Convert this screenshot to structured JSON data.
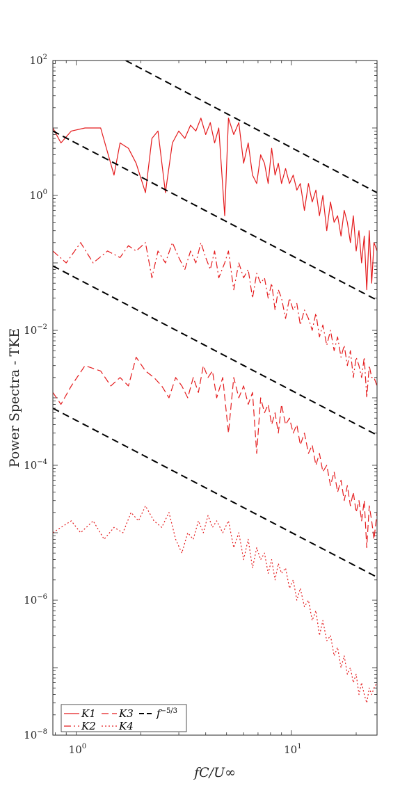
{
  "chart_data": {
    "type": "line",
    "x_scale": "log",
    "y_scale": "log",
    "xlim": [
      0.78,
      25
    ],
    "ylim": [
      1e-08,
      100
    ],
    "xlabel": "fC/U∞",
    "ylabel": "Power Spectra - TKE",
    "x_ticks": [
      {
        "base": "10",
        "exp": "0",
        "value": 1
      },
      {
        "base": "10",
        "exp": "1",
        "value": 10
      }
    ],
    "y_ticks": [
      {
        "base": "10",
        "exp": "2",
        "value": 100
      },
      {
        "base": "10",
        "exp": "0",
        "value": 1
      },
      {
        "base": "10",
        "exp": "-2",
        "value": 0.01
      },
      {
        "base": "10",
        "exp": "-4",
        "value": 0.0001
      },
      {
        "base": "10",
        "exp": "-6",
        "value": 1e-06
      },
      {
        "base": "10",
        "exp": "-8",
        "value": 1e-08
      }
    ],
    "legend_position": "bottom-left",
    "series": [
      {
        "name": "K1",
        "style": "solid",
        "color": "#e41a1c",
        "x": [
          0.78,
          0.85,
          0.95,
          1.1,
          1.3,
          1.5,
          1.6,
          1.75,
          1.9,
          2.1,
          2.25,
          2.4,
          2.6,
          2.8,
          3.0,
          3.2,
          3.4,
          3.6,
          3.8,
          4.0,
          4.2,
          4.4,
          4.6,
          4.9,
          5.1,
          5.4,
          5.7,
          6.0,
          6.3,
          6.6,
          6.9,
          7.2,
          7.5,
          7.8,
          8.1,
          8.4,
          8.7,
          9.0,
          9.4,
          9.8,
          10.2,
          10.6,
          11.0,
          11.5,
          12.0,
          12.5,
          13.0,
          13.5,
          14.0,
          14.6,
          15.2,
          15.8,
          16.4,
          17.0,
          17.6,
          18.2,
          18.8,
          19.4,
          20.0,
          20.6,
          21.2,
          21.8,
          22.4,
          23.0,
          23.6,
          24.2,
          25.0
        ],
        "y": [
          10,
          6,
          9,
          10,
          10,
          2,
          6,
          5,
          3,
          1.1,
          7,
          9,
          1.1,
          6,
          9,
          7,
          11,
          9,
          14,
          8,
          12,
          6,
          10,
          0.5,
          14,
          8,
          12,
          3,
          6,
          2,
          1.5,
          4,
          3,
          1.5,
          5,
          2,
          3,
          1.5,
          2.5,
          1.5,
          2,
          1.2,
          1.5,
          0.6,
          1.5,
          0.8,
          1.2,
          0.5,
          1.0,
          0.3,
          0.8,
          0.4,
          0.5,
          0.25,
          0.6,
          0.4,
          0.2,
          0.5,
          0.15,
          0.3,
          0.1,
          0.25,
          0.04,
          0.3,
          0.05,
          0.2,
          0.15
        ]
      },
      {
        "name": "K2",
        "style": "dashdot",
        "color": "#e41a1c",
        "x": [
          0.78,
          0.9,
          1.05,
          1.2,
          1.4,
          1.6,
          1.75,
          1.9,
          2.1,
          2.25,
          2.4,
          2.6,
          2.8,
          3.0,
          3.2,
          3.4,
          3.6,
          3.8,
          4.0,
          4.2,
          4.4,
          4.6,
          4.9,
          5.1,
          5.4,
          5.7,
          6.0,
          6.3,
          6.6,
          6.9,
          7.2,
          7.5,
          7.8,
          8.1,
          8.4,
          8.7,
          9.0,
          9.4,
          9.8,
          10.2,
          10.6,
          11.0,
          11.5,
          12.0,
          12.5,
          13.0,
          13.5,
          14.0,
          14.6,
          15.2,
          15.8,
          16.4,
          17.0,
          17.6,
          18.2,
          18.8,
          19.4,
          20.0,
          20.6,
          21.2,
          21.8,
          22.4,
          23.0,
          23.6,
          24.2,
          25.0
        ],
        "y": [
          0.15,
          0.1,
          0.2,
          0.1,
          0.15,
          0.12,
          0.18,
          0.15,
          0.2,
          0.06,
          0.15,
          0.1,
          0.2,
          0.12,
          0.08,
          0.15,
          0.1,
          0.2,
          0.12,
          0.08,
          0.15,
          0.06,
          0.1,
          0.15,
          0.04,
          0.1,
          0.06,
          0.08,
          0.03,
          0.07,
          0.05,
          0.06,
          0.03,
          0.05,
          0.02,
          0.04,
          0.03,
          0.015,
          0.03,
          0.02,
          0.025,
          0.012,
          0.02,
          0.015,
          0.01,
          0.018,
          0.008,
          0.012,
          0.006,
          0.01,
          0.005,
          0.008,
          0.004,
          0.006,
          0.003,
          0.005,
          0.002,
          0.004,
          0.003,
          0.002,
          0.004,
          0.001,
          0.003,
          0.002,
          0.002,
          0.0015
        ]
      },
      {
        "name": "K3",
        "style": "dashed",
        "color": "#e41a1c",
        "x": [
          0.78,
          0.85,
          0.95,
          1.1,
          1.3,
          1.45,
          1.6,
          1.75,
          1.9,
          2.1,
          2.3,
          2.5,
          2.7,
          2.9,
          3.1,
          3.3,
          3.5,
          3.7,
          3.9,
          4.1,
          4.3,
          4.5,
          4.8,
          5.1,
          5.4,
          5.7,
          6.0,
          6.3,
          6.6,
          6.9,
          7.2,
          7.5,
          7.8,
          8.1,
          8.4,
          8.7,
          9.0,
          9.4,
          9.8,
          10.2,
          10.6,
          11.0,
          11.5,
          12.0,
          12.5,
          13.0,
          13.5,
          14.0,
          14.6,
          15.2,
          15.8,
          16.4,
          17.0,
          17.6,
          18.2,
          18.8,
          19.4,
          20.0,
          20.6,
          21.2,
          21.8,
          22.4,
          23.0,
          23.6,
          24.2,
          25.0
        ],
        "y": [
          0.0012,
          0.0008,
          0.0015,
          0.003,
          0.0025,
          0.0015,
          0.002,
          0.0015,
          0.004,
          0.0025,
          0.002,
          0.0015,
          0.001,
          0.002,
          0.0015,
          0.001,
          0.002,
          0.0012,
          0.003,
          0.002,
          0.0025,
          0.001,
          0.002,
          0.0003,
          0.002,
          0.001,
          0.0015,
          0.0008,
          0.0012,
          0.00015,
          0.001,
          0.0006,
          0.0008,
          0.0004,
          0.0006,
          0.0003,
          0.0008,
          0.0004,
          0.0005,
          0.0003,
          0.0004,
          0.0002,
          0.0003,
          0.00015,
          0.0002,
          0.0001,
          0.00015,
          8e-05,
          0.0001,
          5e-05,
          8e-05,
          4e-05,
          6e-05,
          3e-05,
          5e-05,
          2.5e-05,
          4e-05,
          2e-05,
          3e-05,
          1.5e-05,
          3e-05,
          6e-06,
          2.5e-05,
          1.5e-05,
          8e-06,
          2e-05
        ]
      },
      {
        "name": "K4",
        "style": "dotted",
        "color": "#e41a1c",
        "x": [
          0.78,
          0.85,
          0.95,
          1.05,
          1.2,
          1.35,
          1.5,
          1.65,
          1.8,
          1.95,
          2.1,
          2.3,
          2.5,
          2.7,
          2.9,
          3.1,
          3.3,
          3.5,
          3.7,
          3.9,
          4.1,
          4.3,
          4.5,
          4.8,
          5.1,
          5.4,
          5.7,
          6.0,
          6.3,
          6.6,
          6.9,
          7.2,
          7.5,
          7.8,
          8.1,
          8.4,
          8.7,
          9.0,
          9.4,
          9.8,
          10.2,
          10.6,
          11.0,
          11.5,
          12.0,
          12.5,
          13.0,
          13.5,
          14.0,
          14.6,
          15.2,
          15.8,
          16.4,
          17.0,
          17.6,
          18.2,
          18.8,
          19.4,
          20.0,
          20.6,
          21.2,
          21.8,
          22.4,
          23.0,
          23.6,
          24.2,
          25.0
        ],
        "y": [
          1e-05,
          1.2e-05,
          1.5e-05,
          1e-05,
          1.5e-05,
          8e-06,
          1.2e-05,
          1e-05,
          2e-05,
          1.5e-05,
          2.5e-05,
          1.5e-05,
          1.2e-05,
          2e-05,
          8e-06,
          5e-06,
          1e-05,
          8e-06,
          1.5e-05,
          1e-05,
          1.8e-05,
          1.2e-05,
          1.5e-05,
          1e-05,
          1.5e-05,
          6e-06,
          1e-05,
          4e-06,
          8e-06,
          3e-06,
          6e-06,
          4e-06,
          5e-06,
          2.5e-06,
          4e-06,
          2e-06,
          3.5e-06,
          2.5e-06,
          3e-06,
          1.5e-06,
          2e-06,
          1e-06,
          1.5e-06,
          8e-07,
          1e-06,
          5e-07,
          7e-07,
          3e-07,
          5e-07,
          2.5e-07,
          3e-07,
          1.5e-07,
          2e-07,
          1e-07,
          1.5e-07,
          8e-08,
          1e-07,
          6e-08,
          8e-08,
          4e-08,
          6e-08,
          4e-08,
          3e-08,
          5e-08,
          4e-08,
          5e-08,
          6e-08
        ]
      },
      {
        "name": "f^-5/3",
        "style": "longdash",
        "color": "#000000",
        "lines": [
          {
            "x": [
              1.7,
              25.0
            ],
            "y": [
              100,
              1.1
            ]
          },
          {
            "x": [
              0.78,
              25.0
            ],
            "y": [
              9,
              0.028
            ]
          },
          {
            "x": [
              0.78,
              25.0
            ],
            "y": [
              0.09,
              0.00028
            ]
          },
          {
            "x": [
              0.78,
              25.0
            ],
            "y": [
              0.0007,
              2.2e-06
            ]
          }
        ]
      }
    ],
    "legend": [
      {
        "label_main": "K1",
        "label_sup": "",
        "style": "solid",
        "color": "#e41a1c"
      },
      {
        "label_main": "K3",
        "label_sup": "",
        "style": "dashed",
        "color": "#e41a1c"
      },
      {
        "label_main": "f",
        "label_sup": "−5/3",
        "style": "longdash",
        "color": "#000000"
      },
      {
        "label_main": "K2",
        "label_sup": "",
        "style": "dashdot",
        "color": "#e41a1c"
      },
      {
        "label_main": "K4",
        "label_sup": "",
        "style": "dotted",
        "color": "#e41a1c"
      }
    ]
  }
}
